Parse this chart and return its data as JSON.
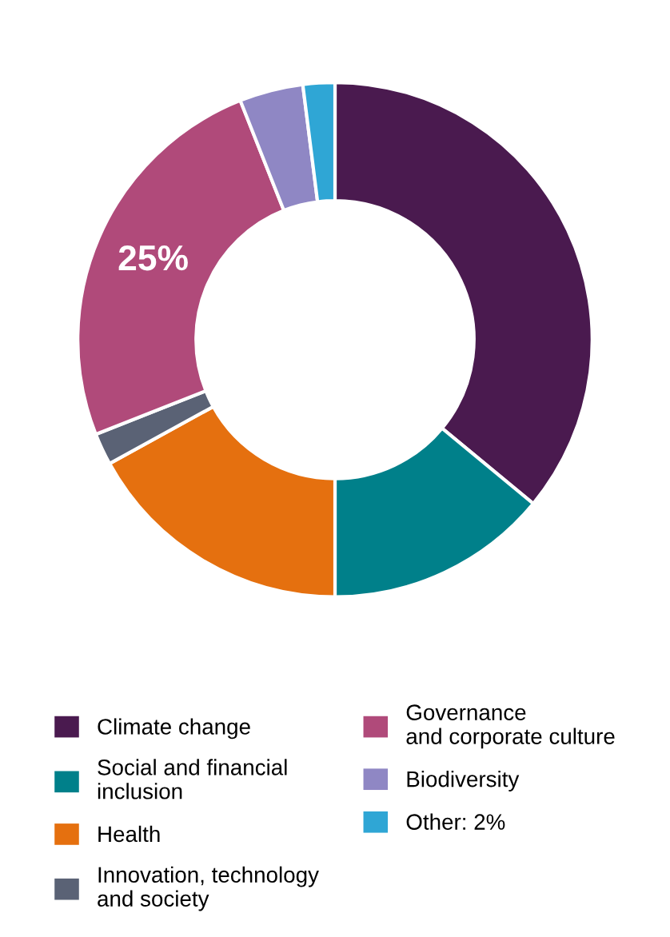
{
  "chart_data": {
    "type": "donut",
    "categories": [
      "Climate change",
      "Social and financial\ninclusion",
      "Health",
      "Innovation, technology\nand society",
      "Governance\nand corporate culture",
      "Biodiversity",
      "Other: 2%"
    ],
    "values": [
      36,
      14,
      17,
      2,
      25,
      4,
      2
    ],
    "colors": [
      "#4a1a4f",
      "#00808a",
      "#e5700f",
      "#5a6275",
      "#b04a7a",
      "#8f87c4",
      "#2fa6d5"
    ],
    "value_labels": [
      null,
      null,
      null,
      null,
      "25%",
      null,
      null
    ],
    "legend": "bottom"
  }
}
